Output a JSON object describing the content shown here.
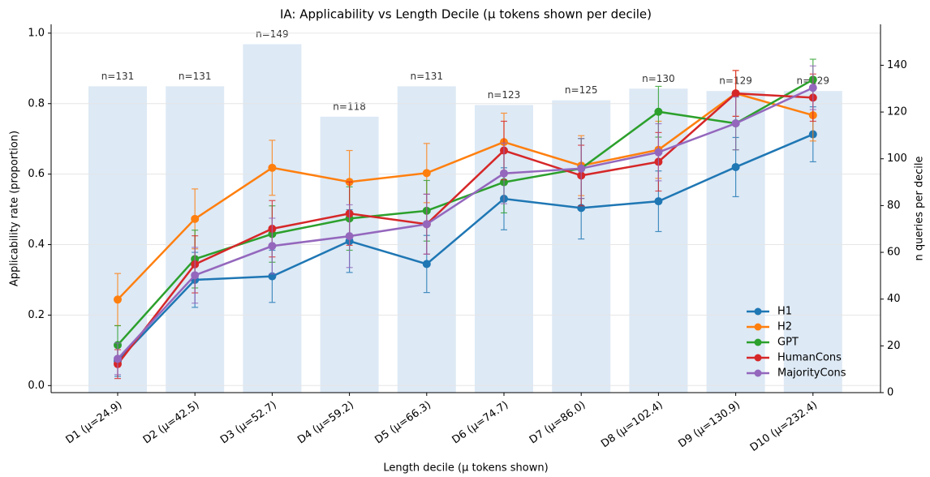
{
  "chart_data": {
    "type": "line",
    "title": "IA: Applicability vs Length Decile (μ tokens shown per decile)",
    "x_label": "Length decile (μ tokens shown)",
    "y_label": "Applicability rate (proportion)",
    "y2_label": "n queries per decile",
    "categories": [
      "D1 (μ=24.9)",
      "D2 (μ=42.5)",
      "D3 (μ=52.7)",
      "D4 (μ=59.2)",
      "D5 (μ=66.3)",
      "D6 (μ=74.7)",
      "D7 (μ=86.0)",
      "D8 (μ=102.4)",
      "D9 (μ=130.9)",
      "D10 (μ=232.4)"
    ],
    "ylim": [
      -0.02,
      1.025
    ],
    "yticks": [
      {
        "value": 0,
        "label": "0.0"
      },
      0.2,
      0.4,
      0.6,
      0.8,
      {
        "value": 1,
        "label": "1.0"
      }
    ],
    "y2lim": [
      0,
      157.5
    ],
    "y2ticks": [
      0,
      20,
      40,
      60,
      80,
      100,
      120,
      140
    ],
    "grid": true,
    "legend": "lower right",
    "bars": {
      "axis": "y2",
      "color": "#dde9f5",
      "values": [
        131,
        131,
        149,
        118,
        131,
        123,
        125,
        130,
        129,
        129
      ],
      "value_labels": [
        "n=131",
        "n=131",
        "n=149",
        "n=118",
        "n=131",
        "n=123",
        "n=125",
        "n=130",
        "n=129",
        "n=129"
      ]
    },
    "series": [
      {
        "name": "H1",
        "color": "#1f77b4",
        "values": [
          0.07,
          0.3,
          0.31,
          0.41,
          0.345,
          0.53,
          0.504,
          0.523,
          0.62,
          0.713
        ],
        "errors": [
          0.044,
          0.078,
          0.074,
          0.089,
          0.081,
          0.088,
          0.088,
          0.086,
          0.084,
          0.078
        ]
      },
      {
        "name": "H2",
        "color": "#ff7f0e",
        "values": [
          0.244,
          0.473,
          0.618,
          0.578,
          0.603,
          0.691,
          0.624,
          0.669,
          0.829,
          0.767
        ],
        "errors": [
          0.074,
          0.085,
          0.078,
          0.089,
          0.084,
          0.082,
          0.085,
          0.081,
          0.065,
          0.073
        ]
      },
      {
        "name": "GPT",
        "color": "#2ca02c",
        "values": [
          0.115,
          0.359,
          0.43,
          0.474,
          0.496,
          0.577,
          0.616,
          0.777,
          0.744,
          0.868
        ],
        "errors": [
          0.055,
          0.082,
          0.08,
          0.09,
          0.086,
          0.087,
          0.085,
          0.072,
          0.075,
          0.058
        ]
      },
      {
        "name": "HumanCons",
        "color": "#d62728",
        "values": [
          0.061,
          0.344,
          0.445,
          0.488,
          0.458,
          0.667,
          0.596,
          0.635,
          0.829,
          0.817
        ],
        "errors": [
          0.041,
          0.081,
          0.08,
          0.09,
          0.085,
          0.083,
          0.086,
          0.083,
          0.065,
          0.067
        ]
      },
      {
        "name": "MajorityCons",
        "color": "#9467bd",
        "values": [
          0.076,
          0.313,
          0.396,
          0.424,
          0.458,
          0.602,
          0.616,
          0.662,
          0.744,
          0.845
        ],
        "errors": [
          0.045,
          0.079,
          0.079,
          0.089,
          0.085,
          0.086,
          0.085,
          0.081,
          0.075,
          0.062
        ]
      }
    ]
  }
}
